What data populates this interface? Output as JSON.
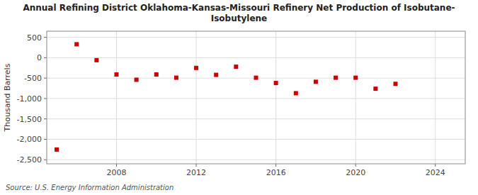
{
  "chart_data": {
    "type": "scatter",
    "title": "Annual Refining District Oklahoma-Kansas-Missouri Refinery Net Production of Isobutane-\nIsobutylene",
    "ylabel": "Thousand Barrels",
    "source": "Source: U.S. Energy Information Administration",
    "x": [
      2005,
      2006,
      2007,
      2008,
      2009,
      2010,
      2011,
      2012,
      2013,
      2014,
      2015,
      2016,
      2017,
      2018,
      2019,
      2020,
      2021,
      2022
    ],
    "values": [
      -2250,
      330,
      -60,
      -410,
      -540,
      -410,
      -490,
      -250,
      -420,
      -220,
      -490,
      -620,
      -870,
      -590,
      -490,
      -490,
      -760,
      -640
    ],
    "color": "#cc0000",
    "marker": "square",
    "xlim": [
      2004.5,
      2025.5
    ],
    "ylim": [
      -2600,
      650
    ],
    "xticks": [
      2008,
      2012,
      2016,
      2020,
      2024
    ],
    "yticks": [
      500,
      0,
      -500,
      {
        "value": -1000,
        "label": "-1,000"
      },
      {
        "value": -1500,
        "label": "-1,500"
      },
      {
        "value": -2000,
        "label": "-2,000"
      },
      {
        "value": -2500,
        "label": "-2,500"
      }
    ],
    "grid": true
  }
}
